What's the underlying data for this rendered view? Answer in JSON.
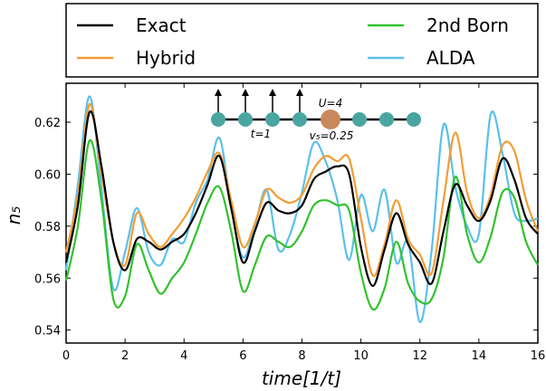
{
  "chart_data": {
    "type": "line",
    "xlabel": "time[1/t]",
    "ylabel": "n₅",
    "xlim": [
      0,
      16
    ],
    "ylim": [
      0.535,
      0.635
    ],
    "xticks": [
      "0",
      "2",
      "4",
      "6",
      "8",
      "10",
      "12",
      "14",
      "16"
    ],
    "yticks": [
      "0.54",
      "0.56",
      "0.58",
      "0.60",
      "0.62"
    ],
    "grid": false,
    "legend_position": "top",
    "series": [
      {
        "name": "Exact",
        "color": "#000000",
        "x": [
          0,
          0.4,
          0.8,
          1.2,
          1.6,
          2.0,
          2.4,
          2.8,
          3.2,
          3.6,
          4.0,
          4.4,
          4.8,
          5.2,
          5.6,
          6.0,
          6.4,
          6.8,
          7.2,
          7.6,
          8.0,
          8.4,
          8.8,
          9.2,
          9.6,
          10.0,
          10.4,
          10.8,
          11.2,
          11.6,
          12.0,
          12.4,
          12.8,
          13.2,
          13.6,
          14.0,
          14.4,
          14.8,
          15.2,
          15.6,
          16.0
        ],
        "y": [
          0.566,
          0.588,
          0.624,
          0.603,
          0.574,
          0.563,
          0.575,
          0.574,
          0.571,
          0.574,
          0.577,
          0.585,
          0.596,
          0.607,
          0.587,
          0.566,
          0.578,
          0.589,
          0.586,
          0.585,
          0.588,
          0.598,
          0.601,
          0.603,
          0.6,
          0.572,
          0.557,
          0.571,
          0.585,
          0.573,
          0.566,
          0.558,
          0.578,
          0.596,
          0.588,
          0.582,
          0.59,
          0.606,
          0.598,
          0.583,
          0.577
        ]
      },
      {
        "name": "Hybrid",
        "color": "#f39c34",
        "x": [
          0,
          0.4,
          0.8,
          1.2,
          1.6,
          2.0,
          2.4,
          2.8,
          3.2,
          3.6,
          4.0,
          4.4,
          4.8,
          5.2,
          5.6,
          6.0,
          6.4,
          6.8,
          7.2,
          7.6,
          8.0,
          8.4,
          8.8,
          9.2,
          9.6,
          10.0,
          10.4,
          10.8,
          11.2,
          11.6,
          12.0,
          12.4,
          12.8,
          13.2,
          13.6,
          14.0,
          14.4,
          14.8,
          15.2,
          15.6,
          16.0
        ],
        "y": [
          0.57,
          0.592,
          0.627,
          0.6,
          0.574,
          0.565,
          0.585,
          0.577,
          0.572,
          0.577,
          0.583,
          0.591,
          0.601,
          0.608,
          0.59,
          0.572,
          0.581,
          0.594,
          0.591,
          0.589,
          0.592,
          0.602,
          0.607,
          0.605,
          0.606,
          0.583,
          0.561,
          0.573,
          0.59,
          0.575,
          0.569,
          0.562,
          0.59,
          0.616,
          0.593,
          0.583,
          0.592,
          0.611,
          0.609,
          0.59,
          0.578
        ]
      },
      {
        "name": "2nd Born",
        "color": "#32c22e",
        "x": [
          0,
          0.4,
          0.8,
          1.2,
          1.6,
          2.0,
          2.4,
          2.8,
          3.2,
          3.6,
          4.0,
          4.4,
          4.8,
          5.2,
          5.6,
          6.0,
          6.4,
          6.8,
          7.2,
          7.6,
          8.0,
          8.4,
          8.8,
          9.2,
          9.6,
          10.0,
          10.4,
          10.8,
          11.2,
          11.6,
          12.0,
          12.4,
          12.8,
          13.2,
          13.6,
          14.0,
          14.4,
          14.8,
          15.2,
          15.6,
          16.0
        ],
        "y": [
          0.559,
          0.58,
          0.613,
          0.59,
          0.552,
          0.553,
          0.573,
          0.563,
          0.554,
          0.56,
          0.566,
          0.577,
          0.589,
          0.595,
          0.578,
          0.555,
          0.565,
          0.576,
          0.574,
          0.572,
          0.578,
          0.588,
          0.59,
          0.588,
          0.586,
          0.562,
          0.548,
          0.556,
          0.574,
          0.558,
          0.551,
          0.552,
          0.568,
          0.599,
          0.577,
          0.566,
          0.576,
          0.593,
          0.591,
          0.574,
          0.565
        ]
      },
      {
        "name": "ALDA",
        "color": "#5bc0eb",
        "x": [
          0,
          0.4,
          0.8,
          1.2,
          1.6,
          2.0,
          2.4,
          2.8,
          3.2,
          3.6,
          4.0,
          4.4,
          4.8,
          5.2,
          5.6,
          6.0,
          6.4,
          6.8,
          7.2,
          7.6,
          8.0,
          8.4,
          8.8,
          9.2,
          9.6,
          10.0,
          10.4,
          10.8,
          11.2,
          11.6,
          12.0,
          12.4,
          12.8,
          13.2,
          13.6,
          14.0,
          14.4,
          14.8,
          15.2,
          15.6,
          16.0
        ],
        "y": [
          0.563,
          0.596,
          0.63,
          0.594,
          0.556,
          0.57,
          0.587,
          0.57,
          0.565,
          0.575,
          0.574,
          0.589,
          0.598,
          0.614,
          0.587,
          0.568,
          0.58,
          0.594,
          0.571,
          0.577,
          0.593,
          0.612,
          0.605,
          0.59,
          0.567,
          0.592,
          0.578,
          0.594,
          0.566,
          0.574,
          0.543,
          0.571,
          0.619,
          0.595,
          0.58,
          0.577,
          0.623,
          0.608,
          0.585,
          0.582,
          0.583
        ]
      }
    ],
    "inset": {
      "u_label": "U=4",
      "t_label": "t=1",
      "v_label": "v₅=0.25",
      "site_color": "#4aa5a0",
      "special_color": "#c8885c",
      "chain_color": "#000000"
    }
  }
}
